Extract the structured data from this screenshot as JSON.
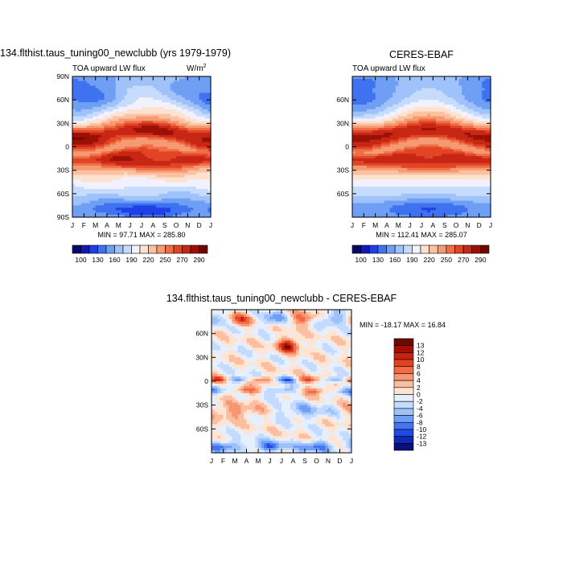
{
  "chart_data": [
    {
      "type": "heatmap",
      "title": "134.flthist.taus_tuning00_newclubb (yrs 1979-1979)",
      "subtitle": "TOA upward LW flux",
      "units": "W/m",
      "units_sup": "2",
      "x_ticks": [
        "J",
        "F",
        "M",
        "A",
        "M",
        "J",
        "J",
        "A",
        "S",
        "O",
        "N",
        "D",
        "J"
      ],
      "y_ticks": [
        "90N",
        "60N",
        "30N",
        "0",
        "30S",
        "60S",
        "90S"
      ],
      "y_values": [
        90,
        60,
        30,
        0,
        -30,
        -60,
        -90
      ],
      "ylim": [
        -90,
        90
      ],
      "stats_text": "MIN =  97.71 MAX = 285.80",
      "min": 97.71,
      "max": 285.8,
      "colorbar_labels": [
        "100",
        "130",
        "160",
        "190",
        "220",
        "250",
        "270",
        "290"
      ],
      "colorbar_levels": [
        100,
        115,
        130,
        145,
        160,
        175,
        190,
        205,
        220,
        235,
        250,
        260,
        270,
        280,
        290
      ]
    },
    {
      "type": "heatmap",
      "title": "CERES-EBAF",
      "subtitle": "TOA upward LW flux",
      "x_ticks": [
        "J",
        "F",
        "M",
        "A",
        "M",
        "J",
        "J",
        "A",
        "S",
        "O",
        "N",
        "D",
        "J"
      ],
      "y_ticks": [
        "60N",
        "30N",
        "0",
        "30S",
        "60S"
      ],
      "y_values": [
        60,
        30,
        0,
        -30,
        -60
      ],
      "ylim": [
        -90,
        90
      ],
      "stats_text": "MIN = 112.41 MAX = 285.07",
      "min": 112.41,
      "max": 285.07,
      "colorbar_labels": [
        "100",
        "130",
        "160",
        "190",
        "220",
        "250",
        "270",
        "290"
      ],
      "colorbar_levels": [
        100,
        115,
        130,
        145,
        160,
        175,
        190,
        205,
        220,
        235,
        250,
        260,
        270,
        280,
        290
      ]
    },
    {
      "type": "heatmap",
      "title": "134.flthist.taus_tuning00_newclubb - CERES-EBAF",
      "x_ticks": [
        "J",
        "F",
        "M",
        "A",
        "M",
        "J",
        "J",
        "A",
        "S",
        "O",
        "N",
        "D",
        "J"
      ],
      "y_ticks": [
        "60N",
        "30N",
        "0",
        "30S",
        "60S"
      ],
      "y_values": [
        60,
        30,
        0,
        -30,
        -60
      ],
      "ylim": [
        -90,
        90
      ],
      "stats_text": "MIN = -18.17 MAX =  16.84",
      "min": -18.17,
      "max": 16.84,
      "colorbar_labels": [
        "13",
        "12",
        "10",
        "8",
        "6",
        "4",
        "2",
        "0",
        "-2",
        "-4",
        "-6",
        "-8",
        "-10",
        "-12",
        "-13"
      ],
      "colorbar_levels": [
        13,
        12,
        10,
        8,
        6,
        4,
        2,
        0,
        -2,
        -4,
        -6,
        -8,
        -10,
        -12,
        -13
      ]
    }
  ],
  "colors": {
    "abs_scale": [
      "#08086b",
      "#1018b8",
      "#1f40e6",
      "#3f72f0",
      "#6f9ff5",
      "#9fc2fa",
      "#c7dcfc",
      "#f1f1ff",
      "#fde2cf",
      "#fbc1a1",
      "#f69a74",
      "#ee6f46",
      "#e24525",
      "#c72714",
      "#9b1106",
      "#700800"
    ],
    "diff_scale": [
      "#700800",
      "#a30e06",
      "#c5230f",
      "#e2421f",
      "#f26b45",
      "#f79670",
      "#fbbea0",
      "#fde4d3",
      "#e5efff",
      "#c4dbff",
      "#9dc1fb",
      "#709ef7",
      "#4474f0",
      "#1f49e2",
      "#1027b7",
      "#0a0f7a"
    ],
    "frame": "#000000"
  }
}
